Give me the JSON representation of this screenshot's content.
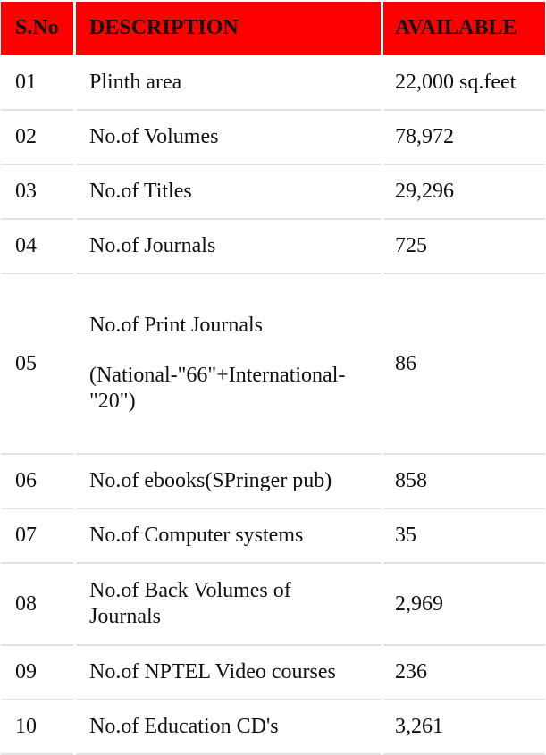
{
  "table": {
    "headers": {
      "sno": "S.No",
      "description": "DESCRIPTION",
      "available": "AVAILABLE"
    },
    "rows": [
      {
        "sno": "01",
        "description": "Plinth area",
        "available": "22,000 sq.feet"
      },
      {
        "sno": "02",
        "description": "No.of Volumes",
        "available": "78,972"
      },
      {
        "sno": "03",
        "description": "No.of Titles",
        "available": "29,296"
      },
      {
        "sno": "04",
        "description": "No.of Journals",
        "available": "725"
      },
      {
        "sno": "05",
        "description": "No.of Print Journals",
        "description_note": "(National-\"66\"+International-\"20\")",
        "available": "86"
      },
      {
        "sno": "06",
        "description": "No.of ebooks(SPringer pub)",
        "available": "858"
      },
      {
        "sno": "07",
        "description": "No.of Computer systems",
        "available": "35"
      },
      {
        "sno": "08",
        "description": "No.of Back Volumes of Journals",
        "available": "2,969"
      },
      {
        "sno": "09",
        "description": "No.of NPTEL Video courses",
        "available": "236"
      },
      {
        "sno": "10",
        "description": "No.of Education CD's",
        "available": "3,261"
      }
    ]
  }
}
